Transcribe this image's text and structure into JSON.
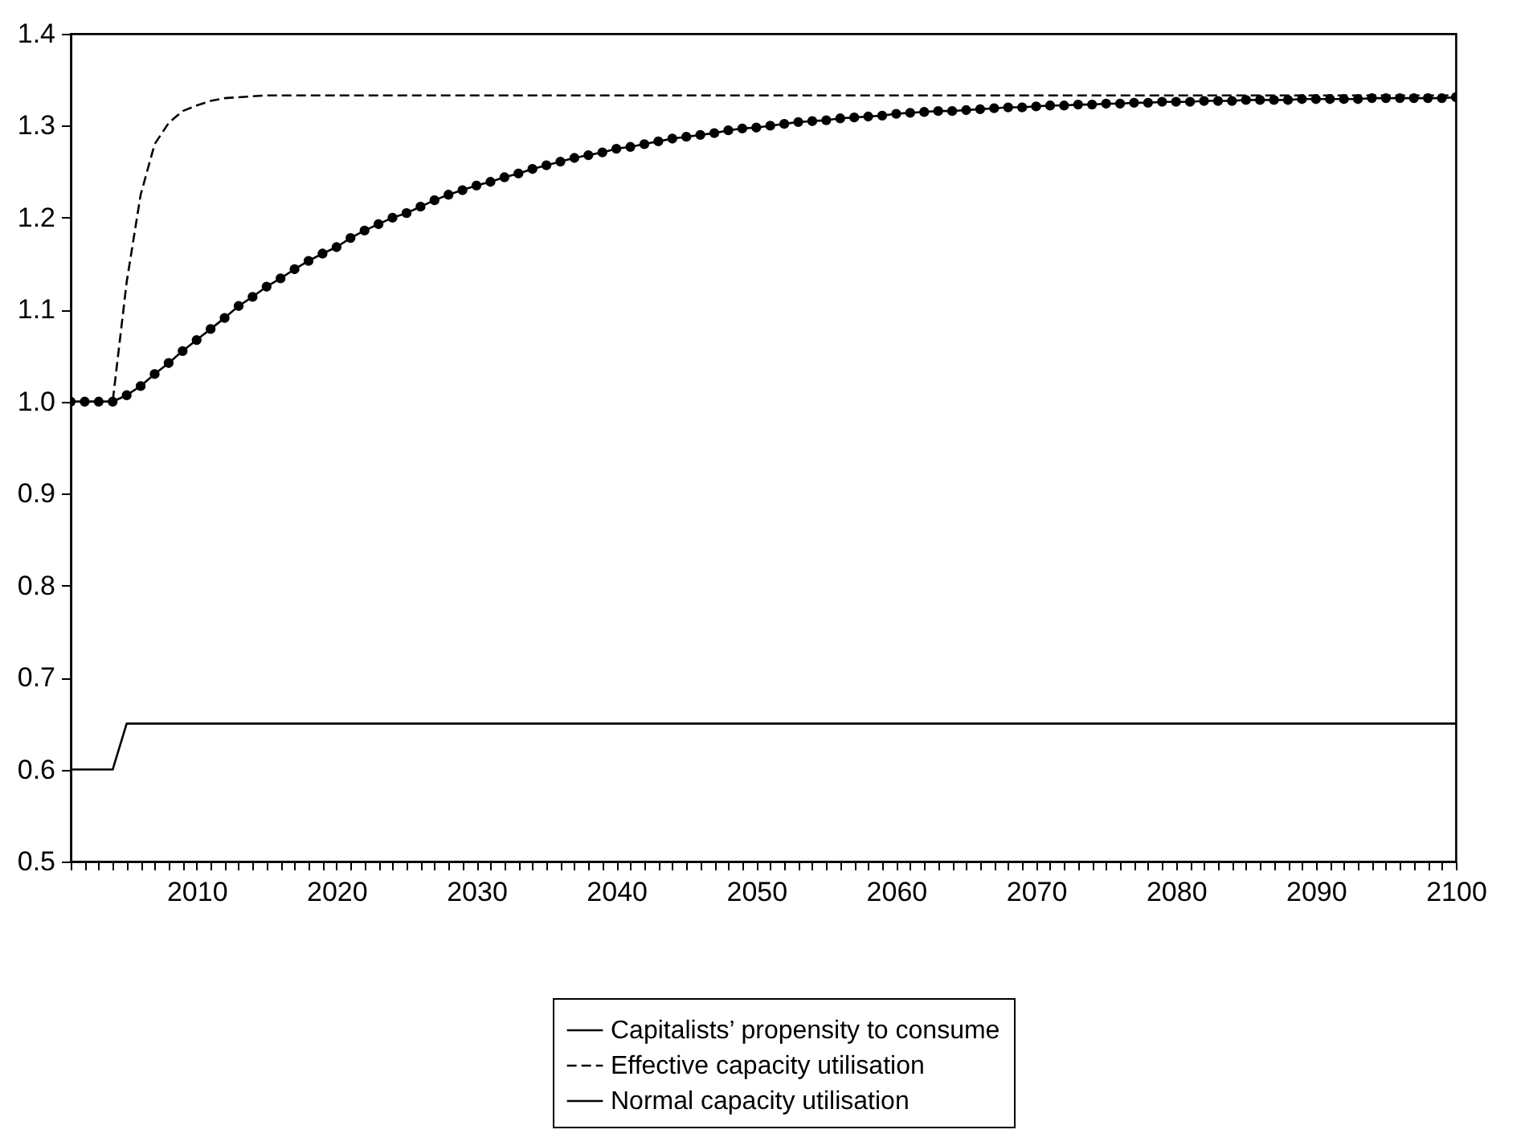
{
  "chart_data": {
    "type": "line",
    "x": [
      2001,
      2002,
      2003,
      2004,
      2005,
      2006,
      2007,
      2008,
      2009,
      2010,
      2011,
      2012,
      2013,
      2014,
      2015,
      2016,
      2017,
      2018,
      2019,
      2020,
      2021,
      2022,
      2023,
      2024,
      2025,
      2026,
      2027,
      2028,
      2029,
      2030,
      2031,
      2032,
      2033,
      2034,
      2035,
      2036,
      2037,
      2038,
      2039,
      2040,
      2041,
      2042,
      2043,
      2044,
      2045,
      2046,
      2047,
      2048,
      2049,
      2050,
      2051,
      2052,
      2053,
      2054,
      2055,
      2056,
      2057,
      2058,
      2059,
      2060,
      2061,
      2062,
      2063,
      2064,
      2065,
      2066,
      2067,
      2068,
      2069,
      2070,
      2071,
      2072,
      2073,
      2074,
      2075,
      2076,
      2077,
      2078,
      2079,
      2080,
      2081,
      2082,
      2083,
      2084,
      2085,
      2086,
      2087,
      2088,
      2089,
      2090,
      2091,
      2092,
      2093,
      2094,
      2095,
      2096,
      2097,
      2098,
      2099,
      2100
    ],
    "series": [
      {
        "name": "Capitalists’ propensity to consume",
        "color": "#000000",
        "line_style": "solid",
        "marker": "none",
        "values": [
          0.6,
          0.6,
          0.6,
          0.6,
          0.65,
          0.65,
          0.65,
          0.65,
          0.65,
          0.65,
          0.65,
          0.65,
          0.65,
          0.65,
          0.65,
          0.65,
          0.65,
          0.65,
          0.65,
          0.65,
          0.65,
          0.65,
          0.65,
          0.65,
          0.65,
          0.65,
          0.65,
          0.65,
          0.65,
          0.65,
          0.65,
          0.65,
          0.65,
          0.65,
          0.65,
          0.65,
          0.65,
          0.65,
          0.65,
          0.65,
          0.65,
          0.65,
          0.65,
          0.65,
          0.65,
          0.65,
          0.65,
          0.65,
          0.65,
          0.65,
          0.65,
          0.65,
          0.65,
          0.65,
          0.65,
          0.65,
          0.65,
          0.65,
          0.65,
          0.65,
          0.65,
          0.65,
          0.65,
          0.65,
          0.65,
          0.65,
          0.65,
          0.65,
          0.65,
          0.65,
          0.65,
          0.65,
          0.65,
          0.65,
          0.65,
          0.65,
          0.65,
          0.65,
          0.65,
          0.65,
          0.65,
          0.65,
          0.65,
          0.65,
          0.65,
          0.65,
          0.65,
          0.65,
          0.65,
          0.65,
          0.65,
          0.65,
          0.65,
          0.65,
          0.65,
          0.65,
          0.65,
          0.65,
          0.65,
          0.65
        ]
      },
      {
        "name": "Effective capacity utilisation",
        "color": "#000000",
        "line_style": "dashed",
        "marker": "none",
        "values": [
          1.0,
          1.0,
          1.0,
          1.0,
          1.13,
          1.225,
          1.28,
          1.303,
          1.316,
          1.322,
          1.327,
          1.33,
          1.331,
          1.332,
          1.333,
          1.333,
          1.333,
          1.333,
          1.333,
          1.333,
          1.333,
          1.333,
          1.333,
          1.333,
          1.333,
          1.333,
          1.333,
          1.333,
          1.333,
          1.333,
          1.333,
          1.333,
          1.333,
          1.333,
          1.333,
          1.333,
          1.333,
          1.333,
          1.333,
          1.333,
          1.333,
          1.333,
          1.333,
          1.333,
          1.333,
          1.333,
          1.333,
          1.333,
          1.333,
          1.333,
          1.333,
          1.333,
          1.333,
          1.333,
          1.333,
          1.333,
          1.333,
          1.333,
          1.333,
          1.333,
          1.333,
          1.333,
          1.333,
          1.333,
          1.333,
          1.333,
          1.333,
          1.333,
          1.333,
          1.333,
          1.333,
          1.333,
          1.333,
          1.333,
          1.333,
          1.333,
          1.333,
          1.333,
          1.333,
          1.333,
          1.333,
          1.333,
          1.333,
          1.333,
          1.333,
          1.333,
          1.333,
          1.333,
          1.333,
          1.333,
          1.333,
          1.333,
          1.333,
          1.333,
          1.333,
          1.333,
          1.333,
          1.333,
          1.333,
          1.333
        ]
      },
      {
        "name": "Normal capacity utilisation",
        "color": "#000000",
        "line_style": "solid",
        "marker": "circle",
        "values": [
          1.0,
          1.0,
          1.0,
          1.0,
          1.007,
          1.017,
          1.03,
          1.042,
          1.055,
          1.067,
          1.079,
          1.091,
          1.104,
          1.114,
          1.125,
          1.134,
          1.144,
          1.153,
          1.161,
          1.168,
          1.178,
          1.186,
          1.193,
          1.2,
          1.205,
          1.212,
          1.219,
          1.225,
          1.23,
          1.235,
          1.239,
          1.244,
          1.248,
          1.253,
          1.257,
          1.261,
          1.265,
          1.268,
          1.271,
          1.275,
          1.277,
          1.28,
          1.283,
          1.286,
          1.288,
          1.29,
          1.292,
          1.295,
          1.297,
          1.298,
          1.3,
          1.302,
          1.304,
          1.305,
          1.306,
          1.308,
          1.309,
          1.31,
          1.311,
          1.313,
          1.314,
          1.315,
          1.316,
          1.316,
          1.317,
          1.318,
          1.319,
          1.32,
          1.32,
          1.321,
          1.322,
          1.322,
          1.323,
          1.323,
          1.324,
          1.324,
          1.325,
          1.325,
          1.326,
          1.326,
          1.326,
          1.327,
          1.327,
          1.327,
          1.328,
          1.328,
          1.328,
          1.328,
          1.329,
          1.329,
          1.329,
          1.329,
          1.329,
          1.33,
          1.33,
          1.33,
          1.33,
          1.33,
          1.33,
          1.331
        ]
      }
    ],
    "xlim": [
      2001,
      2100
    ],
    "xticks": [
      {
        "value": 2001,
        "label": null
      },
      {
        "value": 2002,
        "label": null
      },
      {
        "value": 2003,
        "label": null
      },
      {
        "value": 2004,
        "label": null
      },
      {
        "value": 2005,
        "label": null
      },
      {
        "value": 2006,
        "label": null
      },
      {
        "value": 2007,
        "label": null
      },
      {
        "value": 2008,
        "label": null
      },
      {
        "value": 2009,
        "label": null
      },
      2010,
      {
        "value": 2011,
        "label": null
      },
      {
        "value": 2012,
        "label": null
      },
      {
        "value": 2013,
        "label": null
      },
      {
        "value": 2014,
        "label": null
      },
      {
        "value": 2015,
        "label": null
      },
      {
        "value": 2016,
        "label": null
      },
      {
        "value": 2017,
        "label": null
      },
      {
        "value": 2018,
        "label": null
      },
      {
        "value": 2019,
        "label": null
      },
      2020,
      {
        "value": 2021,
        "label": null
      },
      {
        "value": 2022,
        "label": null
      },
      {
        "value": 2023,
        "label": null
      },
      {
        "value": 2024,
        "label": null
      },
      {
        "value": 2025,
        "label": null
      },
      {
        "value": 2026,
        "label": null
      },
      {
        "value": 2027,
        "label": null
      },
      {
        "value": 2028,
        "label": null
      },
      {
        "value": 2029,
        "label": null
      },
      2030,
      {
        "value": 2031,
        "label": null
      },
      {
        "value": 2032,
        "label": null
      },
      {
        "value": 2033,
        "label": null
      },
      {
        "value": 2034,
        "label": null
      },
      {
        "value": 2035,
        "label": null
      },
      {
        "value": 2036,
        "label": null
      },
      {
        "value": 2037,
        "label": null
      },
      {
        "value": 2038,
        "label": null
      },
      {
        "value": 2039,
        "label": null
      },
      2040,
      {
        "value": 2041,
        "label": null
      },
      {
        "value": 2042,
        "label": null
      },
      {
        "value": 2043,
        "label": null
      },
      {
        "value": 2044,
        "label": null
      },
      {
        "value": 2045,
        "label": null
      },
      {
        "value": 2046,
        "label": null
      },
      {
        "value": 2047,
        "label": null
      },
      {
        "value": 2048,
        "label": null
      },
      {
        "value": 2049,
        "label": null
      },
      2050,
      {
        "value": 2051,
        "label": null
      },
      {
        "value": 2052,
        "label": null
      },
      {
        "value": 2053,
        "label": null
      },
      {
        "value": 2054,
        "label": null
      },
      {
        "value": 2055,
        "label": null
      },
      {
        "value": 2056,
        "label": null
      },
      {
        "value": 2057,
        "label": null
      },
      {
        "value": 2058,
        "label": null
      },
      {
        "value": 2059,
        "label": null
      },
      2060,
      {
        "value": 2061,
        "label": null
      },
      {
        "value": 2062,
        "label": null
      },
      {
        "value": 2063,
        "label": null
      },
      {
        "value": 2064,
        "label": null
      },
      {
        "value": 2065,
        "label": null
      },
      {
        "value": 2066,
        "label": null
      },
      {
        "value": 2067,
        "label": null
      },
      {
        "value": 2068,
        "label": null
      },
      {
        "value": 2069,
        "label": null
      },
      2070,
      {
        "value": 2071,
        "label": null
      },
      {
        "value": 2072,
        "label": null
      },
      {
        "value": 2073,
        "label": null
      },
      {
        "value": 2074,
        "label": null
      },
      {
        "value": 2075,
        "label": null
      },
      {
        "value": 2076,
        "label": null
      },
      {
        "value": 2077,
        "label": null
      },
      {
        "value": 2078,
        "label": null
      },
      {
        "value": 2079,
        "label": null
      },
      2080,
      {
        "value": 2081,
        "label": null
      },
      {
        "value": 2082,
        "label": null
      },
      {
        "value": 2083,
        "label": null
      },
      {
        "value": 2084,
        "label": null
      },
      {
        "value": 2085,
        "label": null
      },
      {
        "value": 2086,
        "label": null
      },
      {
        "value": 2087,
        "label": null
      },
      {
        "value": 2088,
        "label": null
      },
      {
        "value": 2089,
        "label": null
      },
      2090,
      {
        "value": 2091,
        "label": null
      },
      {
        "value": 2092,
        "label": null
      },
      {
        "value": 2093,
        "label": null
      },
      {
        "value": 2094,
        "label": null
      },
      {
        "value": 2095,
        "label": null
      },
      {
        "value": 2096,
        "label": null
      },
      {
        "value": 2097,
        "label": null
      },
      {
        "value": 2098,
        "label": null
      },
      {
        "value": 2099,
        "label": null
      },
      2100
    ],
    "ylim": [
      0.5,
      1.4
    ],
    "yticks": [
      0.5,
      0.6,
      0.7,
      0.8,
      0.9,
      {
        "value": 1.0,
        "label": "1.0"
      },
      1.1,
      1.2,
      1.3,
      1.4
    ],
    "grid": false,
    "legend": "bottom"
  }
}
